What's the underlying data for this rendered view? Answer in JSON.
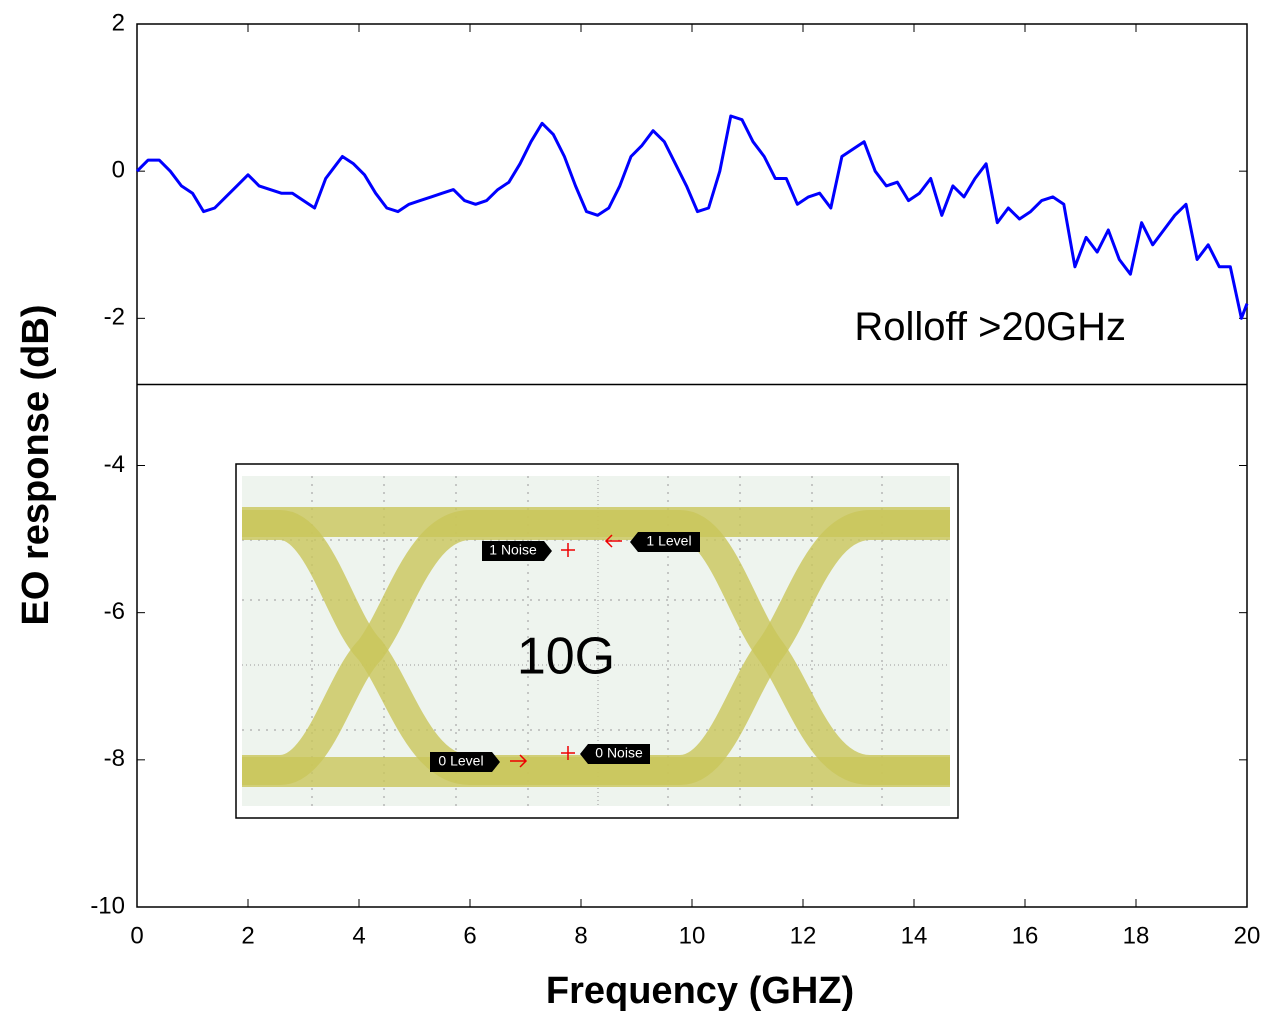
{
  "chart_data": {
    "type": "line",
    "x_label": "Frequency (GHZ)",
    "y_label": "EO response (dB)",
    "xlim": [
      0,
      20
    ],
    "xticks": [
      0,
      2,
      4,
      6,
      8,
      10,
      12,
      14,
      16,
      18,
      20
    ],
    "ylim": [
      -10,
      2
    ],
    "yticks": [
      -10,
      -8,
      -6,
      -4,
      -2,
      0,
      2
    ],
    "series": [
      {
        "color": "#0000ff",
        "x": [
          0,
          0.2,
          0.4,
          0.6,
          0.8,
          1.0,
          1.2,
          1.4,
          1.6,
          1.8,
          2.0,
          2.2,
          2.4,
          2.6,
          2.8,
          3.0,
          3.2,
          3.4,
          3.6,
          3.7,
          3.9,
          4.1,
          4.3,
          4.5,
          4.7,
          4.9,
          5.1,
          5.3,
          5.5,
          5.7,
          5.9,
          6.1,
          6.3,
          6.5,
          6.7,
          6.9,
          7.1,
          7.3,
          7.5,
          7.7,
          7.9,
          8.1,
          8.3,
          8.5,
          8.7,
          8.9,
          9.1,
          9.3,
          9.5,
          9.7,
          9.9,
          10.1,
          10.3,
          10.5,
          10.7,
          10.9,
          11.1,
          11.3,
          11.5,
          11.7,
          11.9,
          12.1,
          12.3,
          12.5,
          12.7,
          12.9,
          13.1,
          13.3,
          13.5,
          13.7,
          13.9,
          14.1,
          14.3,
          14.5,
          14.7,
          14.9,
          15.1,
          15.3,
          15.5,
          15.7,
          15.9,
          16.1,
          16.3,
          16.5,
          16.7,
          16.9,
          17.1,
          17.3,
          17.5,
          17.7,
          17.9,
          18.1,
          18.3,
          18.5,
          18.7,
          18.9,
          19.1,
          19.3,
          19.5,
          19.7,
          19.9,
          20
        ],
        "values": [
          0,
          0.15,
          0.15,
          0.0,
          -0.2,
          -0.3,
          -0.55,
          -0.5,
          -0.35,
          -0.2,
          -0.05,
          -0.2,
          -0.25,
          -0.3,
          -0.3,
          -0.4,
          -0.5,
          -0.1,
          0.1,
          0.2,
          0.1,
          -0.05,
          -0.3,
          -0.5,
          -0.55,
          -0.45,
          -0.4,
          -0.35,
          -0.3,
          -0.25,
          -0.4,
          -0.45,
          -0.4,
          -0.25,
          -0.15,
          0.1,
          0.4,
          0.65,
          0.5,
          0.2,
          -0.2,
          -0.55,
          -0.6,
          -0.5,
          -0.2,
          0.2,
          0.35,
          0.55,
          0.4,
          0.1,
          -0.2,
          -0.55,
          -0.5,
          0.0,
          0.75,
          0.7,
          0.4,
          0.2,
          -0.1,
          -0.1,
          -0.45,
          -0.35,
          -0.3,
          -0.5,
          0.2,
          0.3,
          0.4,
          0.0,
          -0.2,
          -0.15,
          -0.4,
          -0.3,
          -0.1,
          -0.6,
          -0.2,
          -0.35,
          -0.1,
          0.1,
          -0.7,
          -0.5,
          -0.65,
          -0.55,
          -0.4,
          -0.35,
          -0.45,
          -1.3,
          -0.9,
          -1.1,
          -0.8,
          -1.2,
          -1.4,
          -0.7,
          -1.0,
          -0.8,
          -0.6,
          -0.45,
          -1.2,
          -1.0,
          -1.3,
          -1.3,
          -2.0,
          -1.8
        ]
      }
    ],
    "reference_line": -2.9,
    "annotation": "Rolloff >20GHz",
    "inset": {
      "title": "10G",
      "labels": [
        "1 Noise",
        "1 Level",
        "0 Level",
        "0 Noise"
      ]
    }
  }
}
